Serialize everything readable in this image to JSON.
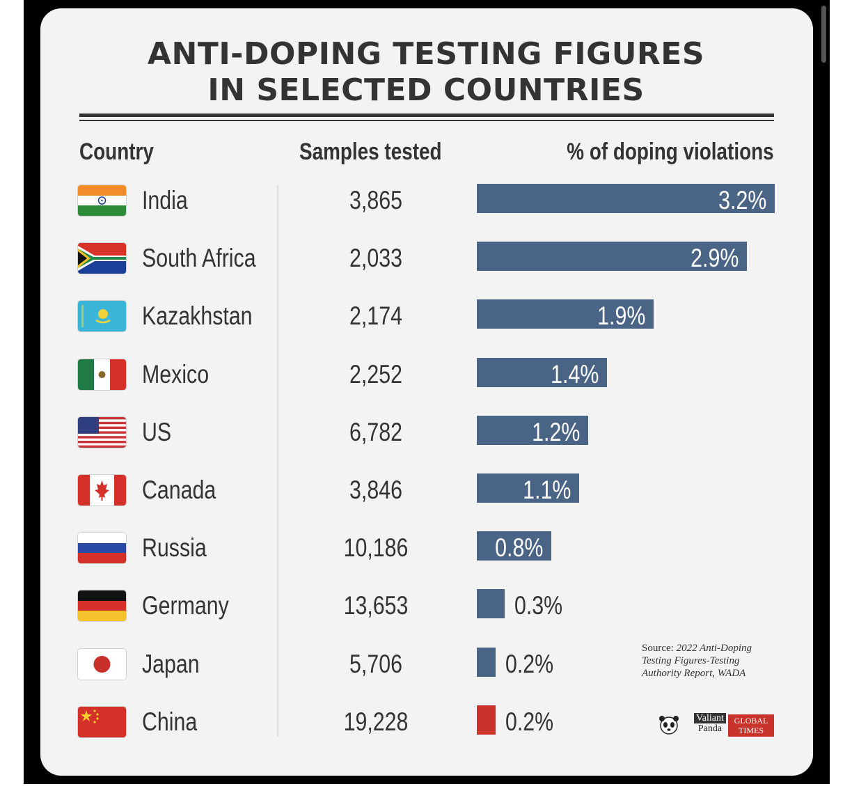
{
  "colors": {
    "bar": "#4a6485",
    "bar_highlight": "#c8342c",
    "text": "#333333",
    "background": "#f3f3f3"
  },
  "chart_data": {
    "type": "table",
    "title_lines": [
      "ANTI-DOPING TESTING FIGURES",
      "IN SELECTED COUNTRIES"
    ],
    "columns": [
      "Country",
      "Samples tested",
      "% of doping violations"
    ],
    "rows": [
      {
        "country": "India",
        "flag": "india-flag-icon",
        "samples": "3,865",
        "violation_label": "3.2%",
        "violation": 3.2
      },
      {
        "country": "South Africa",
        "flag": "south-africa-flag-icon",
        "samples": "2,033",
        "violation_label": "2.9%",
        "violation": 2.9
      },
      {
        "country": "Kazakhstan",
        "flag": "kazakhstan-flag-icon",
        "samples": "2,174",
        "violation_label": "1.9%",
        "violation": 1.9
      },
      {
        "country": "Mexico",
        "flag": "mexico-flag-icon",
        "samples": "2,252",
        "violation_label": "1.4%",
        "violation": 1.4
      },
      {
        "country": "US",
        "flag": "us-flag-icon",
        "samples": "6,782",
        "violation_label": "1.2%",
        "violation": 1.2
      },
      {
        "country": "Canada",
        "flag": "canada-flag-icon",
        "samples": "3,846",
        "violation_label": "1.1%",
        "violation": 1.1
      },
      {
        "country": "Russia",
        "flag": "russia-flag-icon",
        "samples": "10,186",
        "violation_label": "0.8%",
        "violation": 0.8
      },
      {
        "country": "Germany",
        "flag": "germany-flag-icon",
        "samples": "13,653",
        "violation_label": "0.3%",
        "violation": 0.3
      },
      {
        "country": "Japan",
        "flag": "japan-flag-icon",
        "samples": "5,706",
        "violation_label": "0.2%",
        "violation": 0.2
      },
      {
        "country": "China",
        "flag": "china-flag-icon",
        "samples": "19,228",
        "violation_label": "0.2%",
        "violation": 0.2,
        "highlight": true
      }
    ],
    "source_prefix": "Source:",
    "source_text": "2022 Anti-Doping Testing Figures-Testing Authority Report, WADA"
  },
  "logos": {
    "valiant_line1": "Valiant",
    "valiant_line2": "Panda",
    "global_line1": "GLOBAL",
    "global_line2": "TIMES"
  }
}
